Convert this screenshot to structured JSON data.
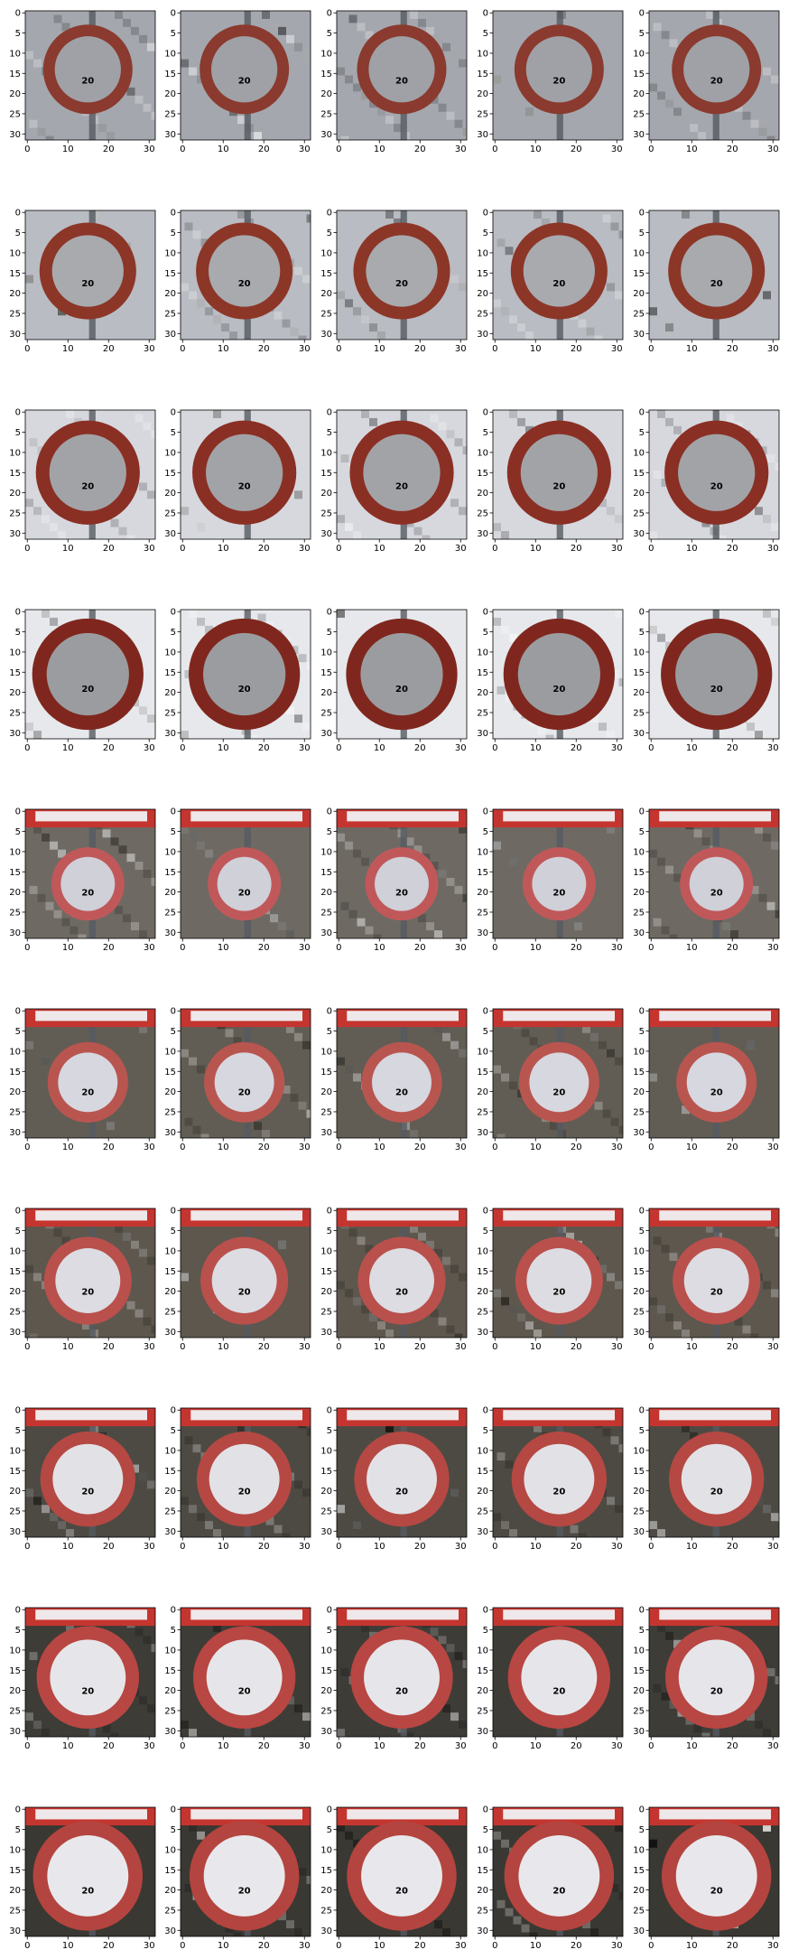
{
  "figure": {
    "rows": 10,
    "cols": 5,
    "x_ticks": [
      "0",
      "10",
      "20",
      "30"
    ],
    "y_ticks": [
      "0",
      "5",
      "10",
      "15",
      "20",
      "25",
      "30"
    ],
    "sign_text": "20"
  },
  "row_styles": [
    {
      "bg": "#a4a7ae",
      "ring": "#8a3a2e",
      "face": "#9fa1a6",
      "digits": "#2a2e3a",
      "top_banner": false
    },
    {
      "bg": "#b9bcc2",
      "ring": "#8c3628",
      "face": "#a8aaae",
      "digits": "#232838",
      "top_banner": false
    },
    {
      "bg": "#d6d8de",
      "ring": "#8a2f24",
      "face": "#a2a3a7",
      "digits": "#1f2432",
      "top_banner": false
    },
    {
      "bg": "#e6e8ec",
      "ring": "#7f271e",
      "face": "#9b9c9f",
      "digits": "#1b1f2a",
      "top_banner": false
    },
    {
      "bg": "#6e6a63",
      "ring": "#c0585a",
      "face": "#cfd0d8",
      "digits": "#4a4f7a",
      "top_banner": true
    },
    {
      "bg": "#625d54",
      "ring": "#b9554f",
      "face": "#d6d7df",
      "digits": "#3b4160",
      "top_banner": true
    },
    {
      "bg": "#5d574e",
      "ring": "#b9504c",
      "face": "#dcdce2",
      "digits": "#384060",
      "top_banner": true
    },
    {
      "bg": "#4d4a43",
      "ring": "#b54843",
      "face": "#e2e2e6",
      "digits": "#2f3550",
      "top_banner": true
    },
    {
      "bg": "#3e3c37",
      "ring": "#b84642",
      "face": "#e6e6ea",
      "digits": "#2b3046",
      "top_banner": true
    },
    {
      "bg": "#3a3832",
      "ring": "#b4443f",
      "face": "#e8e8ec",
      "digits": "#282c3e",
      "top_banner": true
    }
  ]
}
